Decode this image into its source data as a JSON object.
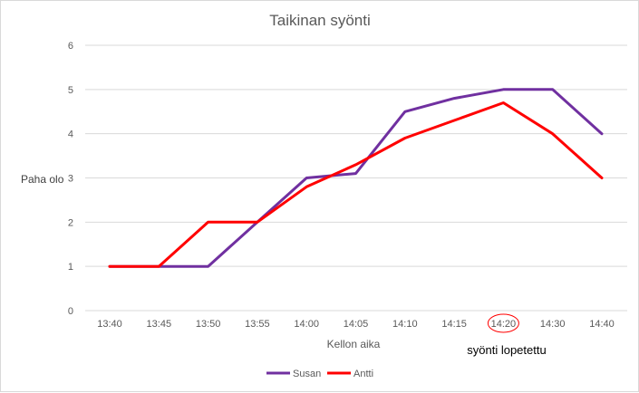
{
  "chart_data": {
    "type": "line",
    "title": "Taikinan syönti",
    "xlabel": "Kellon aika",
    "ylabel": "Paha olo",
    "categories": [
      "13:40",
      "13:45",
      "13:50",
      "13:55",
      "14:00",
      "14:05",
      "14:10",
      "14:15",
      "14:20",
      "14:30",
      "14:40"
    ],
    "ylim": [
      0,
      6
    ],
    "yticks": [
      "0",
      "1",
      "2",
      "3",
      "4",
      "5",
      "6"
    ],
    "grid": true,
    "legend": "bottom",
    "series": [
      {
        "name": "Susan",
        "color": "#7030a0",
        "values": [
          1,
          1,
          1,
          2,
          3,
          3.1,
          4.5,
          4.8,
          5,
          5,
          4
        ]
      },
      {
        "name": "Antti",
        "color": "#ff0000",
        "values": [
          1,
          1,
          2,
          2,
          2.8,
          3.3,
          3.9,
          4.3,
          4.7,
          4,
          3
        ]
      }
    ],
    "annotation": {
      "text": "syönti lopetettu",
      "category": "14:20",
      "circle_color": "#ff0000"
    }
  }
}
